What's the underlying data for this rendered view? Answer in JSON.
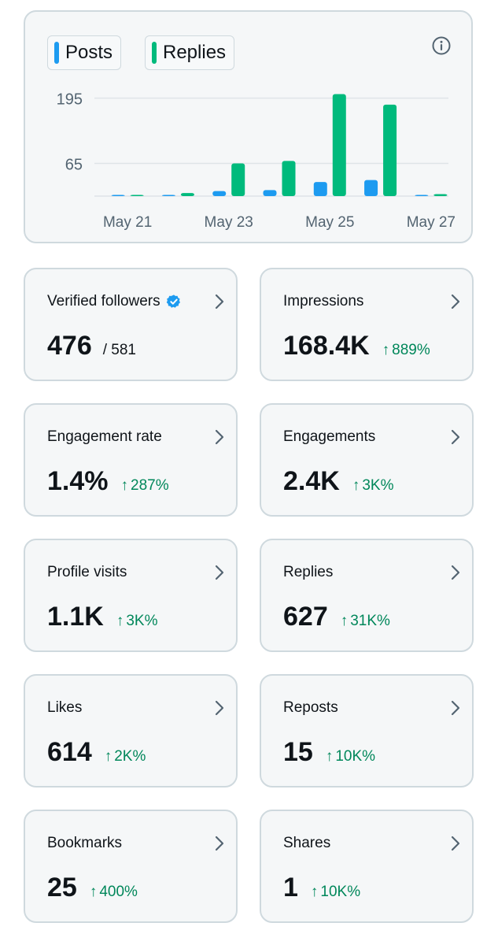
{
  "chart": {
    "legend": [
      {
        "label": "Posts",
        "color": "#1d9bf0"
      },
      {
        "label": "Replies",
        "color": "#00ba7c"
      }
    ],
    "info_icon": "info-icon"
  },
  "chart_data": {
    "type": "bar",
    "categories": [
      "May 21",
      "May 22",
      "May 23",
      "May 24",
      "May 25",
      "May 26",
      "May 27"
    ],
    "series": [
      {
        "name": "Posts",
        "values": [
          0,
          0,
          10,
          12,
          28,
          32,
          1
        ]
      },
      {
        "name": "Replies",
        "values": [
          2,
          6,
          65,
          70,
          203,
          182,
          4
        ]
      }
    ],
    "x_tick_labels": [
      "May 21",
      "May 23",
      "May 25",
      "May 27"
    ],
    "y_ticks": [
      65,
      195
    ],
    "ylim": [
      0,
      210
    ],
    "grid": true,
    "legend_position": "top-left"
  },
  "stats": [
    {
      "label": "Verified followers",
      "value": "476",
      "sub": "/ 581",
      "verified": true,
      "change": ""
    },
    {
      "label": "Impressions",
      "value": "168.4K",
      "change": "889%"
    },
    {
      "label": "Engagement rate",
      "value": "1.4%",
      "change": "287%"
    },
    {
      "label": "Engagements",
      "value": "2.4K",
      "change": "3K%"
    },
    {
      "label": "Profile visits",
      "value": "1.1K",
      "change": "3K%"
    },
    {
      "label": "Replies",
      "value": "627",
      "change": "31K%"
    },
    {
      "label": "Likes",
      "value": "614",
      "change": "2K%"
    },
    {
      "label": "Reposts",
      "value": "15",
      "change": "10K%"
    },
    {
      "label": "Bookmarks",
      "value": "25",
      "change": "400%"
    },
    {
      "label": "Shares",
      "value": "1",
      "change": "10K%"
    }
  ],
  "colors": {
    "positive": "#00875a",
    "verified": "#1d9bf0"
  }
}
